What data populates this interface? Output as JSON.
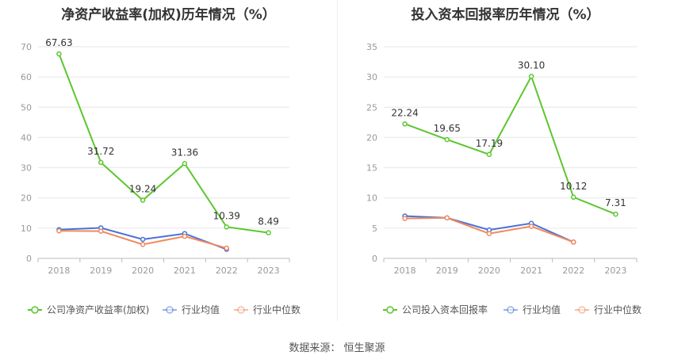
{
  "source": "数据来源：  恒生聚源",
  "chart_data": [
    {
      "type": "line",
      "title": "净资产收益率(加权)历年情况（%）",
      "categories": [
        "2018",
        "2019",
        "2020",
        "2021",
        "2022",
        "2023"
      ],
      "ylim": [
        0,
        70
      ],
      "yticks": [
        0,
        10,
        20,
        30,
        40,
        50,
        60,
        70
      ],
      "grid": true,
      "legend_position": "bottom",
      "series": [
        {
          "name": "公司净资产收益率(加权)",
          "color": "#5cc72e",
          "values": [
            67.63,
            31.72,
            19.24,
            31.36,
            10.39,
            8.49
          ],
          "labels": [
            "67.63",
            "31.72",
            "19.24",
            "31.36",
            "10.39",
            "8.49"
          ]
        },
        {
          "name": "行业均值",
          "color": "#4a72d6",
          "values": [
            9.5,
            10.1,
            6.3,
            8.2,
            3.0,
            null
          ]
        },
        {
          "name": "行业中位数",
          "color": "#f08a5d",
          "values": [
            9.1,
            9.0,
            4.6,
            7.3,
            3.4,
            null
          ]
        }
      ]
    },
    {
      "type": "line",
      "title": "投入资本回报率历年情况（%）",
      "categories": [
        "2018",
        "2019",
        "2020",
        "2021",
        "2022",
        "2023"
      ],
      "ylim": [
        0,
        35
      ],
      "yticks": [
        0,
        5,
        10,
        15,
        20,
        25,
        30,
        35
      ],
      "grid": true,
      "legend_position": "bottom",
      "series": [
        {
          "name": "公司投入资本回报率",
          "color": "#5cc72e",
          "values": [
            22.24,
            19.65,
            17.19,
            30.1,
            10.12,
            7.31
          ],
          "labels": [
            "22.24",
            "19.65",
            "17.19",
            "30.10",
            "10.12",
            "7.31"
          ]
        },
        {
          "name": "行业均值",
          "color": "#4a72d6",
          "values": [
            7.0,
            6.7,
            4.7,
            5.8,
            2.7,
            null
          ]
        },
        {
          "name": "行业中位数",
          "color": "#f08a5d",
          "values": [
            6.6,
            6.7,
            4.1,
            5.3,
            2.7,
            null
          ]
        }
      ]
    }
  ]
}
